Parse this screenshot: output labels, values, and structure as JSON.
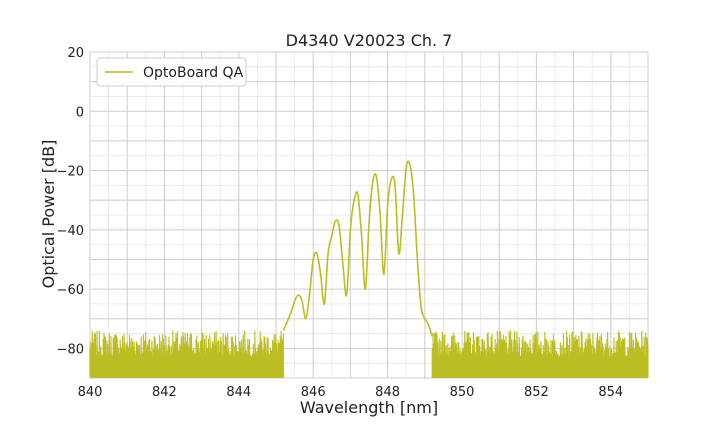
{
  "chart_data": {
    "type": "line",
    "title": "D4340 V20023 Ch. 7",
    "xlabel": "Wavelength [nm]",
    "ylabel": "Optical Power [dB]",
    "xlim": [
      840,
      855
    ],
    "ylim": [
      -90,
      20
    ],
    "xticks": [
      840,
      842,
      844,
      846,
      848,
      850,
      852,
      854
    ],
    "yticks": [
      20,
      0,
      -20,
      -40,
      -60,
      -80
    ],
    "xtick_labels": [
      "840",
      "842",
      "844",
      "846",
      "848",
      "850",
      "852",
      "854"
    ],
    "ytick_labels": [
      "20",
      "0",
      "−20",
      "−40",
      "−60",
      "−80"
    ],
    "grid": true,
    "minor_grid": true,
    "legend_position": "top-left",
    "series": [
      {
        "name": "OptoBoard QA",
        "color": "#bcbd22",
        "x": [
          845.2,
          845.4,
          845.5,
          845.6,
          845.7,
          845.8,
          845.9,
          846.0,
          846.1,
          846.2,
          846.3,
          846.4,
          846.5,
          846.6,
          846.7,
          846.8,
          846.9,
          847.0,
          847.1,
          847.2,
          847.3,
          847.4,
          847.5,
          847.6,
          847.7,
          847.8,
          847.9,
          848.0,
          848.1,
          848.2,
          848.3,
          848.4,
          848.5,
          848.6,
          848.7,
          848.8,
          848.9,
          849.0,
          849.1,
          849.2
        ],
        "y": [
          -74,
          -68,
          -64,
          -62,
          -64,
          -70,
          -62,
          -50,
          -48,
          -55,
          -65,
          -48,
          -42,
          -37,
          -39,
          -52,
          -62,
          -40,
          -30,
          -28,
          -42,
          -60,
          -38,
          -24,
          -22,
          -35,
          -55,
          -32,
          -23,
          -25,
          -48,
          -35,
          -19,
          -18,
          -28,
          -50,
          -66,
          -70,
          -72,
          -76
        ]
      }
    ],
    "noise_floor": {
      "x_ranges": [
        [
          840,
          845.2
        ],
        [
          849.2,
          855
        ]
      ],
      "y_range": [
        -90,
        -74
      ]
    }
  }
}
